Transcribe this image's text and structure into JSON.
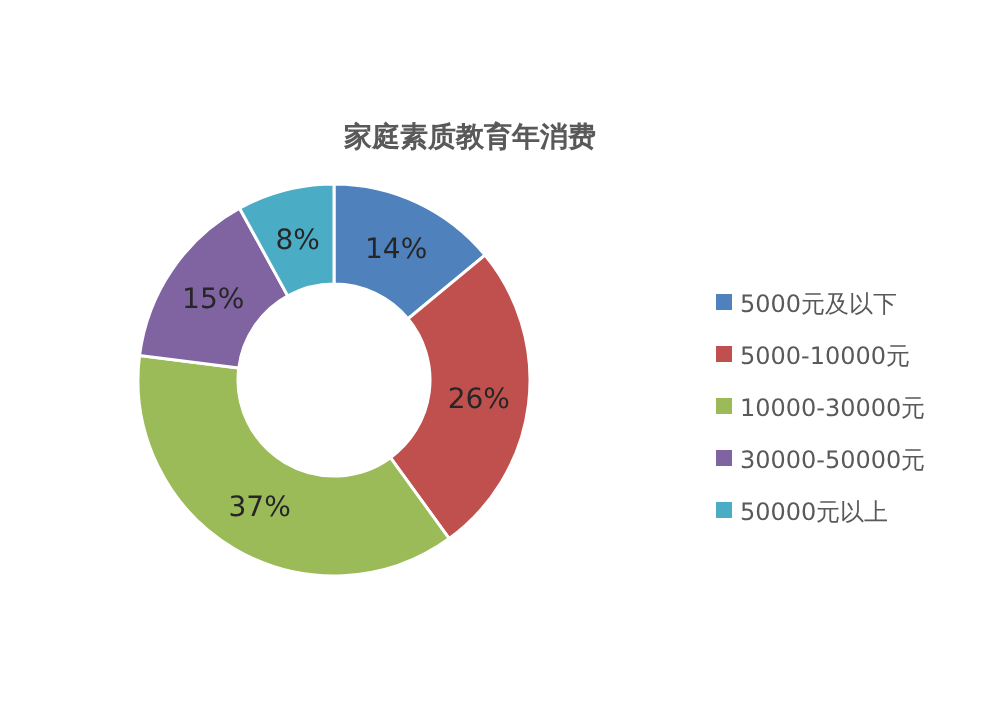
{
  "chart_data": {
    "type": "donut",
    "title": "家庭素质教育年消费",
    "categories": [
      "5000元及以下",
      "5000-10000元",
      "10000-30000元",
      "30000-50000元",
      "50000元以上"
    ],
    "values": [
      14,
      26,
      37,
      15,
      8
    ],
    "value_labels": [
      "14%",
      "26%",
      "37%",
      "15%",
      "8%"
    ],
    "colors": [
      "#4f81bd",
      "#c0504d",
      "#9bbb59",
      "#8064a2",
      "#4bacc6"
    ],
    "legend": "right"
  }
}
